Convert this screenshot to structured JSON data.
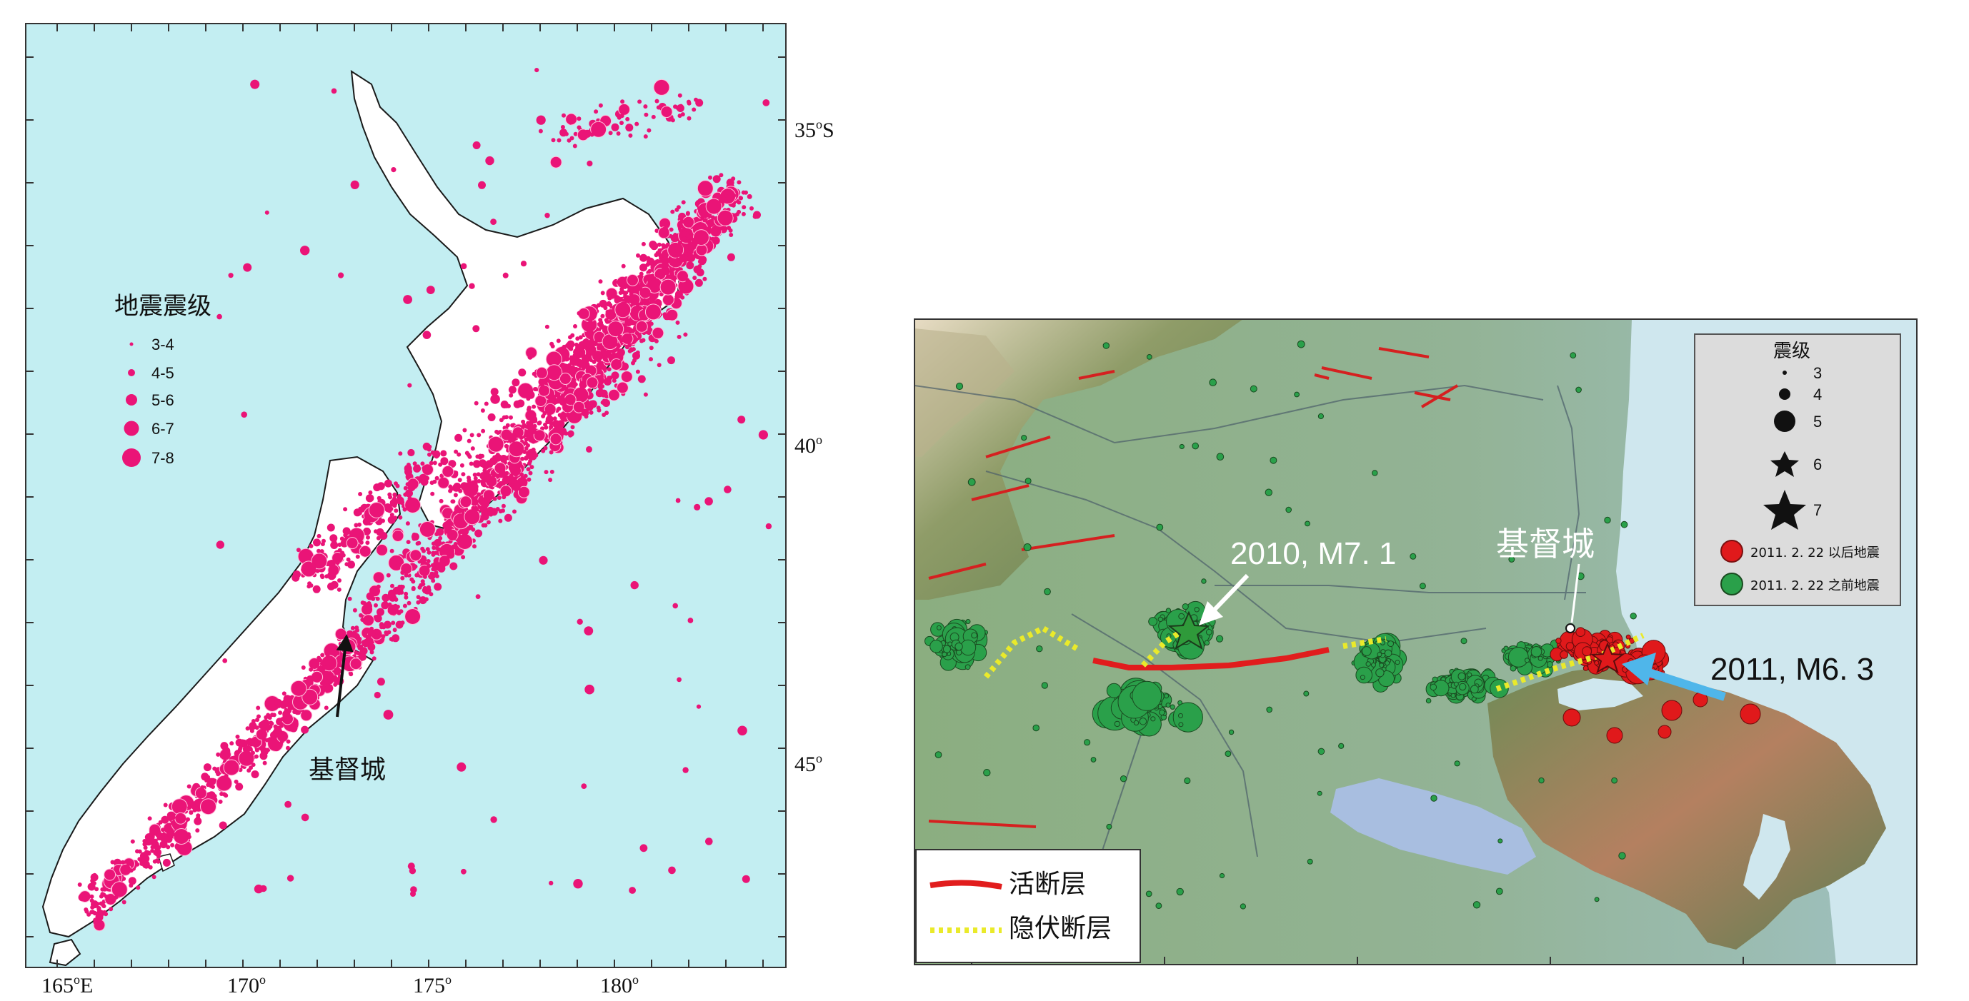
{
  "left_map": {
    "longitude_labels": [
      {
        "deg": "165",
        "suffix": "E"
      },
      {
        "deg": "170",
        "suffix": ""
      },
      {
        "deg": "175",
        "suffix": ""
      },
      {
        "deg": "180",
        "suffix": ""
      }
    ],
    "latitude_labels": [
      {
        "deg": "35",
        "suffix": "S"
      },
      {
        "deg": "40",
        "suffix": ""
      },
      {
        "deg": "45",
        "suffix": ""
      }
    ],
    "legend": {
      "title": "地震震级",
      "items": [
        "3-4",
        "4-5",
        "5-6",
        "6-7",
        "7-8"
      ]
    },
    "city_label": "基督城",
    "colors": {
      "ocean": "#c3eef2",
      "land": "#ffffff",
      "quake": "#ea1477",
      "coast": "#1a1a1a"
    }
  },
  "right_map": {
    "city_label": "基督城",
    "event_2010": "2010, M7. 1",
    "event_2011": "2011, M6. 3",
    "magnitude_legend": {
      "title": "震级",
      "items": [
        "3",
        "4",
        "5",
        "6",
        "7"
      ],
      "after_label": "2011. 2. 22 以后地震",
      "before_label": "2011. 2. 22 之前地震"
    },
    "fault_legend": {
      "active": "活断层",
      "hidden": "隐伏断层"
    },
    "colors": {
      "after": "#e0191b",
      "before": "#2aa04a",
      "active_fault": "#e11d1d",
      "hidden_fault": "#eaea2a",
      "arrow_2011": "#4fb6ea"
    }
  }
}
